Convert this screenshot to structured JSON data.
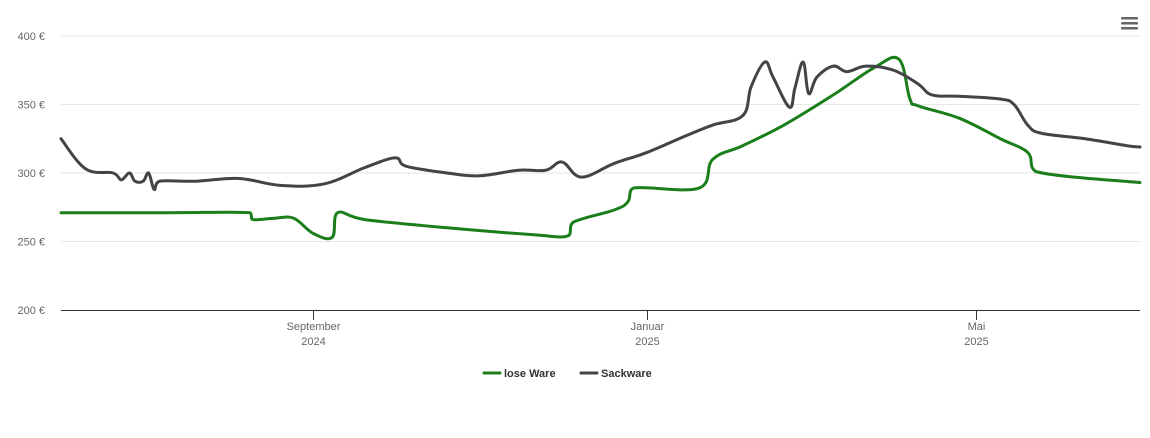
{
  "chart_data": {
    "type": "line",
    "title": "",
    "xlabel": "",
    "ylabel": "",
    "x_range": [
      "2024-06-01",
      "2025-06-30"
    ],
    "ylim": [
      200,
      400
    ],
    "y_ticks": [
      {
        "value": 200,
        "label": "200 €"
      },
      {
        "value": 250,
        "label": "250 €"
      },
      {
        "value": 300,
        "label": "300 €"
      },
      {
        "value": 350,
        "label": "350 €"
      },
      {
        "value": 400,
        "label": "400 €"
      }
    ],
    "x_ticks": [
      {
        "date": "2024-09-01",
        "line1": "September",
        "line2": "2024"
      },
      {
        "date": "2025-01-01",
        "line1": "Januar",
        "line2": "2025"
      },
      {
        "date": "2025-05-01",
        "line1": "Mai",
        "line2": "2025"
      }
    ],
    "grid": "horizontal",
    "legend_position": "bottom-center",
    "series": [
      {
        "name": "lose Ware",
        "color": "#1a7f1a",
        "points": [
          [
            "2024-06-01",
            271
          ],
          [
            "2024-07-10",
            271
          ],
          [
            "2024-08-09",
            271
          ],
          [
            "2024-08-10",
            266
          ],
          [
            "2024-08-18",
            267
          ],
          [
            "2024-08-25",
            267
          ],
          [
            "2024-09-01",
            256
          ],
          [
            "2024-09-08",
            253
          ],
          [
            "2024-09-10",
            271
          ],
          [
            "2024-09-20",
            266
          ],
          [
            "2024-10-20",
            260
          ],
          [
            "2024-11-20",
            255
          ],
          [
            "2024-12-03",
            254
          ],
          [
            "2024-12-05",
            264
          ],
          [
            "2024-12-20",
            273
          ],
          [
            "2024-12-25",
            279
          ],
          [
            "2024-12-27",
            289
          ],
          [
            "2025-01-20",
            289
          ],
          [
            "2025-01-25",
            310
          ],
          [
            "2025-02-05",
            320
          ],
          [
            "2025-02-20",
            335
          ],
          [
            "2025-03-10",
            357
          ],
          [
            "2025-03-25",
            377
          ],
          [
            "2025-04-03",
            383
          ],
          [
            "2025-04-07",
            354
          ],
          [
            "2025-04-10",
            349
          ],
          [
            "2025-04-25",
            340
          ],
          [
            "2025-05-10",
            325
          ],
          [
            "2025-05-20",
            315
          ],
          [
            "2025-05-23",
            301
          ],
          [
            "2025-06-30",
            293
          ]
        ]
      },
      {
        "name": "Sackware",
        "color": "#434348",
        "points": [
          [
            "2024-06-01",
            325
          ],
          [
            "2024-06-10",
            303
          ],
          [
            "2024-06-20",
            300
          ],
          [
            "2024-06-23",
            295
          ],
          [
            "2024-06-26",
            300
          ],
          [
            "2024-06-28",
            294
          ],
          [
            "2024-07-01",
            294
          ],
          [
            "2024-07-03",
            300
          ],
          [
            "2024-07-05",
            288
          ],
          [
            "2024-07-07",
            294
          ],
          [
            "2024-07-20",
            294
          ],
          [
            "2024-08-05",
            296
          ],
          [
            "2024-08-20",
            291
          ],
          [
            "2024-09-05",
            292
          ],
          [
            "2024-09-20",
            304
          ],
          [
            "2024-10-01",
            311
          ],
          [
            "2024-10-05",
            305
          ],
          [
            "2024-10-20",
            300
          ],
          [
            "2024-11-01",
            298
          ],
          [
            "2024-11-15",
            302
          ],
          [
            "2024-11-25",
            302
          ],
          [
            "2024-12-01",
            308
          ],
          [
            "2024-12-08",
            297
          ],
          [
            "2024-12-20",
            307
          ],
          [
            "2025-01-01",
            315
          ],
          [
            "2025-01-15",
            327
          ],
          [
            "2025-01-25",
            335
          ],
          [
            "2025-02-05",
            342
          ],
          [
            "2025-02-08",
            363
          ],
          [
            "2025-02-13",
            381
          ],
          [
            "2025-02-16",
            370
          ],
          [
            "2025-02-22",
            348
          ],
          [
            "2025-02-24",
            362
          ],
          [
            "2025-02-27",
            381
          ],
          [
            "2025-03-01",
            358
          ],
          [
            "2025-03-04",
            370
          ],
          [
            "2025-03-10",
            378
          ],
          [
            "2025-03-15",
            374
          ],
          [
            "2025-03-22",
            378
          ],
          [
            "2025-04-01",
            375
          ],
          [
            "2025-04-10",
            365
          ],
          [
            "2025-04-15",
            357
          ],
          [
            "2025-04-25",
            356
          ],
          [
            "2025-05-10",
            354
          ],
          [
            "2025-05-15",
            350
          ],
          [
            "2025-05-20",
            335
          ],
          [
            "2025-05-25",
            329
          ],
          [
            "2025-06-10",
            325
          ],
          [
            "2025-06-25",
            320
          ],
          [
            "2025-06-30",
            319
          ]
        ]
      }
    ]
  }
}
